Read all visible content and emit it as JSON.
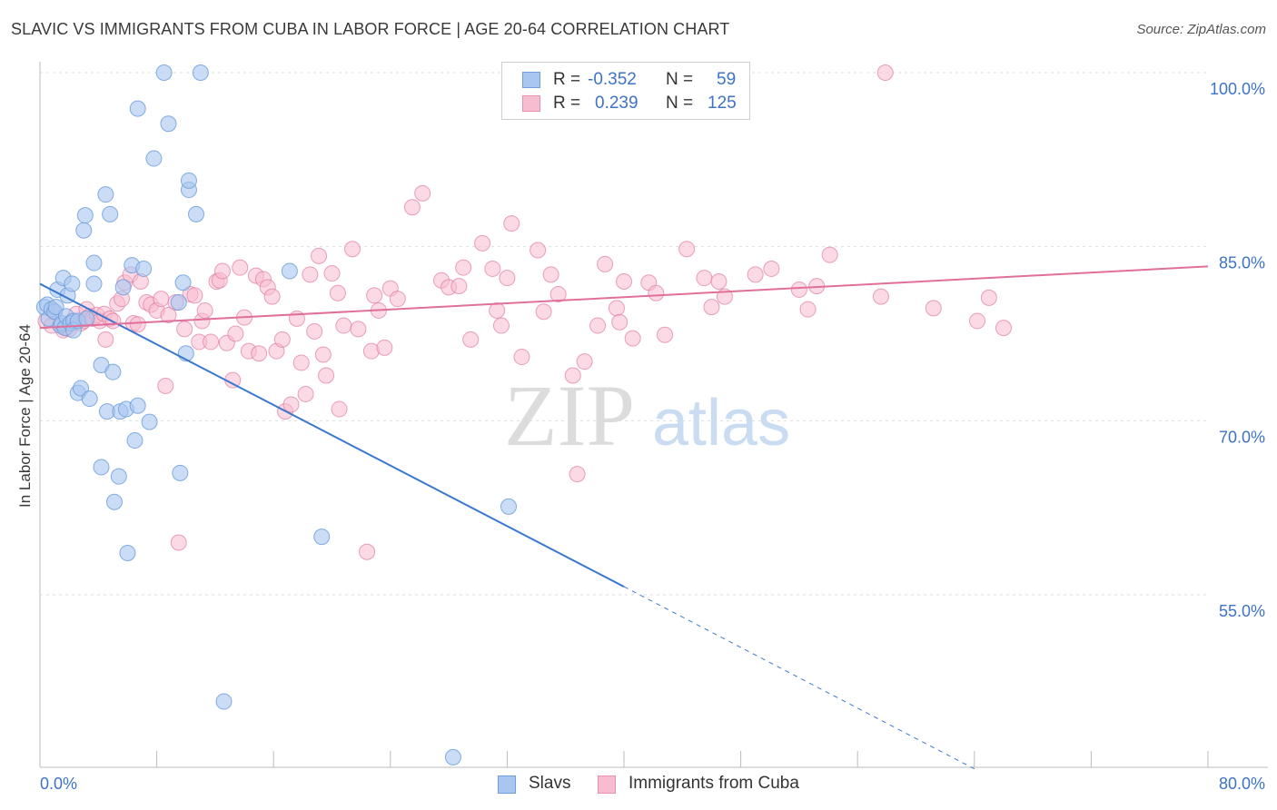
{
  "title": "SLAVIC VS IMMIGRANTS FROM CUBA IN LABOR FORCE | AGE 20-64 CORRELATION CHART",
  "source": "Source: ZipAtlas.com",
  "watermark": {
    "zip": "ZIP",
    "atlas": "atlas"
  },
  "legend": {
    "rows": [
      {
        "r_label": "R =",
        "r_value": "-0.352",
        "n_label": "N =",
        "n_value": "59",
        "color": "#a9c6f0",
        "border": "#6f9fdc"
      },
      {
        "r_label": "R =",
        "r_value": "0.239",
        "n_label": "N =",
        "n_value": "125",
        "color": "#f7bcd0",
        "border": "#e98fb0"
      }
    ]
  },
  "bottom_legend": [
    {
      "label": "Slavs",
      "color": "#a9c6f0",
      "border": "#6f9fdc"
    },
    {
      "label": "Immigrants from Cuba",
      "color": "#f7bcd0",
      "border": "#e98fb0"
    }
  ],
  "chart_data": {
    "type": "scatter",
    "xlabel": "",
    "ylabel": "In Labor Force | Age 20-64",
    "xlim": [
      0,
      80
    ],
    "ylim": [
      40,
      101.5
    ],
    "x_tick_labels": [
      "0.0%",
      "80.0%"
    ],
    "y_ticks": [
      100,
      85,
      70,
      55
    ],
    "y_tick_labels": [
      "100.0%",
      "85.0%",
      "70.0%",
      "55.0%"
    ],
    "grid": true,
    "series": [
      {
        "name": "Slavs",
        "color": "#6f9fdc",
        "fill": "#a9c6f0",
        "trend": {
          "x": [
            0,
            40
          ],
          "y": [
            81.8,
            55.7
          ],
          "dashed_to": [
            64,
            40
          ]
        },
        "points": [
          [
            0.3,
            79.8
          ],
          [
            0.5,
            80.0
          ],
          [
            0.6,
            78.8
          ],
          [
            0.8,
            79.6
          ],
          [
            1.0,
            79.4
          ],
          [
            1.1,
            79.8
          ],
          [
            1.2,
            81.3
          ],
          [
            1.4,
            78.2
          ],
          [
            1.5,
            78.4
          ],
          [
            1.6,
            82.3
          ],
          [
            1.7,
            78.0
          ],
          [
            1.8,
            79.0
          ],
          [
            1.9,
            80.8
          ],
          [
            2.1,
            78.4
          ],
          [
            2.2,
            81.8
          ],
          [
            2.3,
            78.6
          ],
          [
            2.3,
            77.8
          ],
          [
            2.6,
            78.6
          ],
          [
            2.6,
            72.4
          ],
          [
            2.8,
            72.8
          ],
          [
            3.0,
            86.4
          ],
          [
            3.1,
            87.7
          ],
          [
            3.2,
            78.8
          ],
          [
            3.4,
            71.9
          ],
          [
            3.7,
            81.8
          ],
          [
            3.7,
            83.6
          ],
          [
            4.2,
            74.8
          ],
          [
            4.2,
            66.0
          ],
          [
            4.5,
            89.5
          ],
          [
            4.6,
            70.8
          ],
          [
            4.8,
            87.8
          ],
          [
            5.0,
            74.2
          ],
          [
            5.1,
            63.0
          ],
          [
            5.4,
            65.2
          ],
          [
            5.5,
            70.8
          ],
          [
            5.7,
            81.5
          ],
          [
            5.9,
            71.0
          ],
          [
            6.0,
            58.6
          ],
          [
            6.3,
            83.4
          ],
          [
            6.5,
            68.3
          ],
          [
            6.7,
            96.9
          ],
          [
            6.7,
            71.3
          ],
          [
            7.1,
            83.1
          ],
          [
            7.5,
            69.9
          ],
          [
            7.8,
            92.6
          ],
          [
            8.5,
            100.0
          ],
          [
            8.8,
            95.6
          ],
          [
            9.5,
            80.2
          ],
          [
            9.6,
            65.5
          ],
          [
            9.8,
            81.9
          ],
          [
            10.0,
            75.8
          ],
          [
            10.2,
            89.9
          ],
          [
            10.2,
            90.7
          ],
          [
            10.7,
            87.8
          ],
          [
            11.0,
            100.0
          ],
          [
            12.6,
            45.8
          ],
          [
            17.1,
            82.9
          ],
          [
            19.3,
            60.0
          ],
          [
            32.1,
            62.6
          ],
          [
            28.3,
            41.0
          ]
        ]
      },
      {
        "name": "Immigrants from Cuba",
        "color": "#e07aa0",
        "fill": "#f7bcd0",
        "trend": {
          "x": [
            0,
            80
          ],
          "y": [
            78.0,
            83.3
          ]
        },
        "points": [
          [
            0.4,
            78.6
          ],
          [
            0.8,
            78.2
          ],
          [
            1.0,
            79.4
          ],
          [
            1.4,
            78.2
          ],
          [
            1.6,
            77.8
          ],
          [
            1.8,
            78.0
          ],
          [
            2.0,
            77.9
          ],
          [
            2.2,
            78.6
          ],
          [
            2.5,
            79.2
          ],
          [
            2.8,
            78.4
          ],
          [
            3.0,
            78.6
          ],
          [
            3.2,
            79.6
          ],
          [
            3.4,
            79.0
          ],
          [
            3.6,
            78.8
          ],
          [
            3.9,
            79.1
          ],
          [
            4.1,
            78.6
          ],
          [
            4.4,
            79.2
          ],
          [
            4.5,
            77.0
          ],
          [
            4.8,
            78.8
          ],
          [
            5.0,
            78.6
          ],
          [
            5.3,
            80.1
          ],
          [
            5.6,
            80.5
          ],
          [
            5.8,
            81.9
          ],
          [
            6.2,
            82.6
          ],
          [
            6.4,
            78.4
          ],
          [
            6.7,
            78.3
          ],
          [
            6.9,
            82.0
          ],
          [
            7.3,
            80.2
          ],
          [
            7.6,
            80.0
          ],
          [
            8.0,
            79.5
          ],
          [
            8.3,
            80.5
          ],
          [
            8.6,
            73.0
          ],
          [
            8.8,
            79.1
          ],
          [
            9.3,
            80.2
          ],
          [
            9.5,
            59.5
          ],
          [
            9.9,
            77.9
          ],
          [
            10.3,
            80.9
          ],
          [
            10.6,
            80.8
          ],
          [
            10.9,
            76.8
          ],
          [
            11.1,
            78.6
          ],
          [
            11.3,
            79.5
          ],
          [
            11.7,
            76.8
          ],
          [
            12.1,
            82.0
          ],
          [
            12.3,
            82.1
          ],
          [
            12.5,
            82.9
          ],
          [
            12.8,
            76.7
          ],
          [
            13.2,
            73.5
          ],
          [
            13.4,
            77.5
          ],
          [
            13.7,
            83.2
          ],
          [
            14.0,
            78.9
          ],
          [
            14.3,
            76.0
          ],
          [
            14.8,
            82.5
          ],
          [
            15.0,
            75.8
          ],
          [
            15.3,
            82.2
          ],
          [
            15.6,
            81.5
          ],
          [
            15.9,
            80.7
          ],
          [
            16.2,
            76.0
          ],
          [
            16.6,
            77.0
          ],
          [
            16.8,
            70.8
          ],
          [
            17.2,
            71.4
          ],
          [
            17.6,
            78.8
          ],
          [
            17.9,
            75.0
          ],
          [
            18.2,
            72.3
          ],
          [
            18.5,
            82.6
          ],
          [
            18.8,
            77.7
          ],
          [
            19.1,
            84.2
          ],
          [
            19.4,
            75.7
          ],
          [
            19.6,
            73.9
          ],
          [
            20.0,
            82.7
          ],
          [
            20.4,
            81.0
          ],
          [
            20.5,
            71.0
          ],
          [
            20.8,
            78.2
          ],
          [
            21.4,
            84.8
          ],
          [
            21.8,
            77.9
          ],
          [
            22.4,
            58.7
          ],
          [
            22.7,
            76.0
          ],
          [
            22.9,
            80.8
          ],
          [
            23.2,
            79.5
          ],
          [
            23.6,
            76.3
          ],
          [
            24.0,
            81.4
          ],
          [
            24.5,
            80.5
          ],
          [
            25.5,
            88.4
          ],
          [
            26.2,
            89.6
          ],
          [
            27.5,
            82.1
          ],
          [
            28.0,
            81.5
          ],
          [
            28.7,
            81.6
          ],
          [
            29.0,
            83.2
          ],
          [
            29.5,
            77.0
          ],
          [
            30.3,
            85.3
          ],
          [
            31.0,
            83.1
          ],
          [
            31.3,
            79.5
          ],
          [
            31.6,
            78.2
          ],
          [
            32.0,
            82.3
          ],
          [
            32.3,
            87.0
          ],
          [
            33.0,
            75.5
          ],
          [
            34.1,
            84.7
          ],
          [
            34.5,
            79.4
          ],
          [
            35.0,
            82.6
          ],
          [
            35.5,
            80.9
          ],
          [
            36.5,
            73.9
          ],
          [
            36.8,
            65.4
          ],
          [
            37.3,
            75.1
          ],
          [
            38.2,
            78.2
          ],
          [
            38.7,
            83.5
          ],
          [
            39.5,
            79.7
          ],
          [
            39.7,
            78.5
          ],
          [
            40.0,
            82.0
          ],
          [
            40.6,
            77.1
          ],
          [
            41.7,
            81.9
          ],
          [
            42.2,
            81.0
          ],
          [
            42.8,
            77.4
          ],
          [
            44.3,
            84.8
          ],
          [
            45.5,
            82.3
          ],
          [
            46.0,
            79.8
          ],
          [
            46.5,
            82.0
          ],
          [
            46.9,
            80.7
          ],
          [
            49.0,
            82.6
          ],
          [
            50.1,
            83.1
          ],
          [
            52.0,
            81.3
          ],
          [
            52.6,
            79.6
          ],
          [
            53.2,
            81.6
          ],
          [
            54.1,
            84.3
          ],
          [
            57.6,
            80.7
          ],
          [
            57.9,
            100.0
          ],
          [
            61.2,
            79.7
          ],
          [
            64.2,
            78.6
          ],
          [
            65.0,
            80.6
          ],
          [
            66.0,
            78.0
          ]
        ]
      }
    ]
  }
}
